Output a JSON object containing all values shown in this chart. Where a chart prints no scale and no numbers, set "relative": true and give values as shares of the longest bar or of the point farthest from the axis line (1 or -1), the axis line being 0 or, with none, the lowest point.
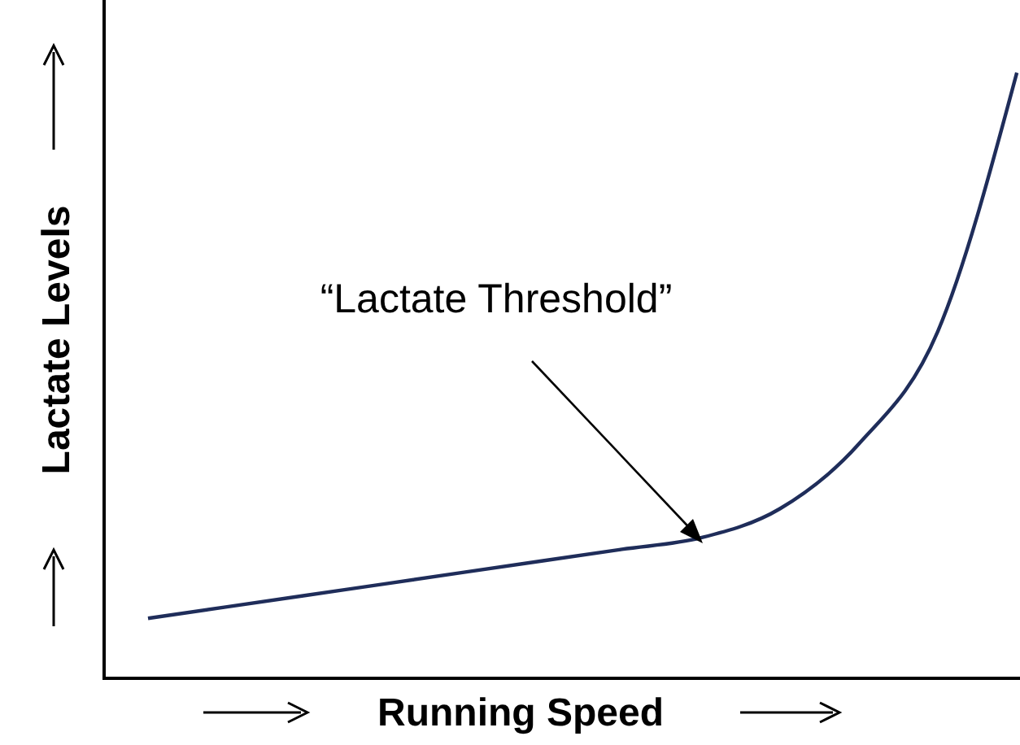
{
  "chart_data": {
    "type": "line",
    "relative": true,
    "xlabel": "Running Speed",
    "ylabel": "Lactate Levels",
    "annotations": [
      "“Lactate Threshold”"
    ],
    "categories": [
      null,
      null,
      null,
      null,
      null,
      null,
      null,
      null,
      null,
      null,
      null,
      null
    ],
    "series": [
      {
        "color": "#1f2d5a",
        "values": [
          0.099,
          0.118,
          0.137,
          0.156,
          0.175,
          0.194,
          0.213,
          0.232,
          0.28,
          0.387,
          0.573,
          1.0
        ]
      }
    ],
    "marker": "none",
    "line_style": "solid"
  }
}
